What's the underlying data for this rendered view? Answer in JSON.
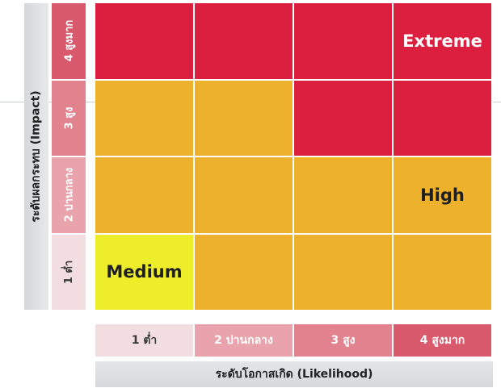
{
  "chart_data": {
    "type": "heatmap",
    "xlabel": "ระดับโอกาสเกิด (Likelihood)",
    "ylabel": "ระดับผลกระทบ (Impact)",
    "x_levels": [
      "1 ต่ำ",
      "2 ปานกลาง",
      "3 สูง",
      "4 สูงมาก"
    ],
    "y_levels": [
      "1 ต่ำ",
      "2 ปานกลาง",
      "3 สูง",
      "4 สูงมาก"
    ],
    "legend": [
      "Extreme",
      "High",
      "Medium"
    ],
    "cells": [
      [
        "Medium",
        "High",
        "High",
        "High"
      ],
      [
        "High",
        "High",
        "High",
        "High"
      ],
      [
        "High",
        "High",
        "Extreme",
        "Extreme"
      ],
      [
        "Extreme",
        "Extreme",
        "Extreme",
        "Extreme"
      ]
    ],
    "cell_labels": [
      {
        "text": "Medium",
        "x": 1,
        "y": 1
      },
      {
        "text": "High",
        "x": 4,
        "y": 2
      },
      {
        "text": "Extreme",
        "x": 4,
        "y": 4
      }
    ],
    "colors": {
      "Extreme": "#dc1f3f",
      "High": "#eeb12c",
      "Medium": "#eded2a",
      "Extreme_text": "#ffffff",
      "High_text": "#1f1f1f",
      "Medium_text": "#1f1f1f"
    },
    "level_colors": [
      "#f2dde0",
      "#e9a3ad",
      "#e3828f",
      "#da5a6d"
    ]
  }
}
